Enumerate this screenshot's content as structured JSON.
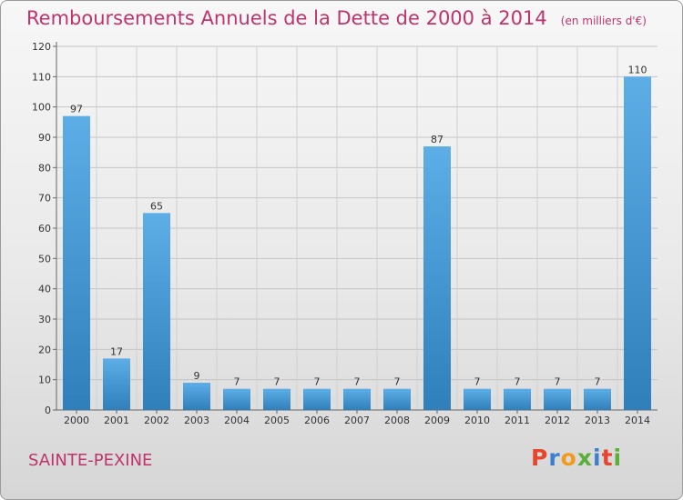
{
  "header": {
    "title": "Remboursements Annuels de la Dette de 2000 à 2014",
    "unit": "(en milliers d'€)"
  },
  "footer": {
    "commune": "SAINTE-PEXINE",
    "logo": {
      "text": "Proxiti",
      "colors": [
        "#e8452c",
        "#3a7fd0",
        "#f29a1d",
        "#5aae3a",
        "#3a7fd0",
        "#e8452c",
        "#5aae3a"
      ]
    }
  },
  "colors": {
    "title": "#c0336c",
    "bar_top": "#5dade7",
    "bar_bottom": "#2f7fbb"
  },
  "chart_data": {
    "type": "bar",
    "title": "Remboursements Annuels de la Dette de 2000 à 2014",
    "subtitle": "(en milliers d'€)",
    "categories": [
      "2000",
      "2001",
      "2002",
      "2003",
      "2004",
      "2005",
      "2006",
      "2007",
      "2008",
      "2009",
      "2010",
      "2011",
      "2012",
      "2013",
      "2014"
    ],
    "values": [
      97,
      17,
      65,
      9,
      7,
      7,
      7,
      7,
      7,
      87,
      7,
      7,
      7,
      7,
      110
    ],
    "ylim": [
      0,
      120
    ],
    "yticks": [
      0,
      10,
      20,
      30,
      40,
      50,
      60,
      70,
      80,
      90,
      100,
      110,
      120
    ],
    "grid": true,
    "xlabel": "",
    "ylabel": ""
  }
}
